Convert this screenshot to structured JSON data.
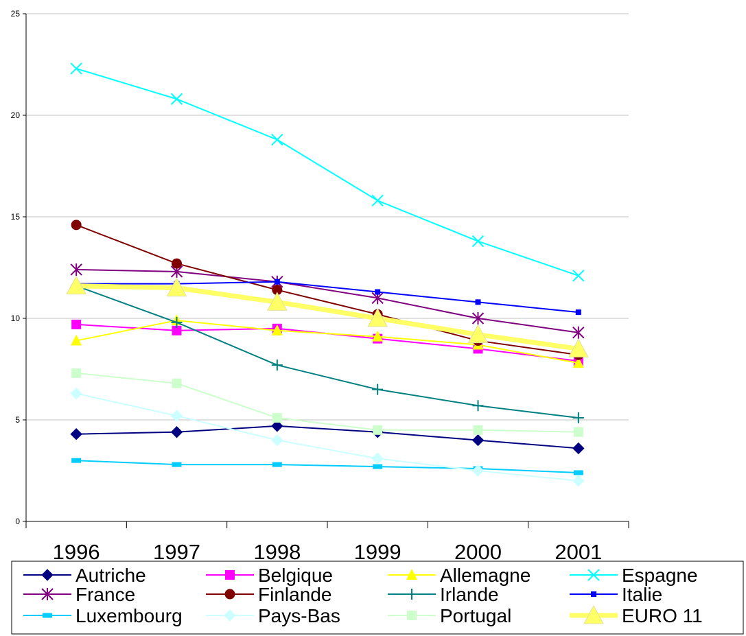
{
  "chart_data": {
    "type": "line",
    "title": "",
    "xlabel": "",
    "ylabel": "",
    "categories": [
      "1996",
      "1997",
      "1998",
      "1999",
      "2000",
      "2001"
    ],
    "ylim": [
      0,
      25
    ],
    "yticks": [
      "0",
      "5",
      "10",
      "15",
      "20",
      "25"
    ],
    "grid": true,
    "legend_position": "bottom",
    "series": [
      {
        "name": "Autriche",
        "color": "#000080",
        "marker": "diamond",
        "values": [
          4.3,
          4.4,
          4.7,
          4.4,
          4.0,
          3.6
        ]
      },
      {
        "name": "Belgique",
        "color": "#ff00ff",
        "marker": "square",
        "values": [
          9.7,
          9.4,
          9.5,
          9.0,
          8.5,
          7.9
        ]
      },
      {
        "name": "Allemagne",
        "color": "#ffff00",
        "marker": "triangle",
        "values": [
          8.9,
          9.9,
          9.4,
          9.1,
          8.7,
          7.8
        ]
      },
      {
        "name": "Espagne",
        "color": "#00ffff",
        "marker": "x",
        "values": [
          22.3,
          20.8,
          18.8,
          15.8,
          13.8,
          12.1
        ]
      },
      {
        "name": "France",
        "color": "#800080",
        "marker": "star",
        "values": [
          12.4,
          12.3,
          11.8,
          11.0,
          10.0,
          9.3
        ]
      },
      {
        "name": "Finlande",
        "color": "#800000",
        "marker": "circle",
        "values": [
          14.6,
          12.7,
          11.4,
          10.2,
          8.9,
          8.2
        ]
      },
      {
        "name": "Irlande",
        "color": "#008080",
        "marker": "plus",
        "values": [
          11.6,
          9.8,
          7.7,
          6.5,
          5.7,
          5.1
        ]
      },
      {
        "name": "Italie",
        "color": "#0000ff",
        "marker": "smallsquare",
        "values": [
          11.7,
          11.7,
          11.8,
          11.3,
          10.8,
          10.3
        ]
      },
      {
        "name": "Luxembourg",
        "color": "#00ccff",
        "marker": "dash",
        "values": [
          3.0,
          2.8,
          2.8,
          2.7,
          2.6,
          2.4
        ]
      },
      {
        "name": "Pays-Bas",
        "color": "#ccffff",
        "marker": "diamond",
        "values": [
          6.3,
          5.2,
          4.0,
          3.1,
          2.5,
          2.0
        ]
      },
      {
        "name": "Portugal",
        "color": "#ccffcc",
        "marker": "square",
        "values": [
          7.3,
          6.8,
          5.1,
          4.5,
          4.5,
          4.4
        ]
      },
      {
        "name": "EURO 11",
        "color": "#ffff66",
        "marker": "bigtriangle",
        "width": 7,
        "values": [
          11.6,
          11.5,
          10.8,
          10.0,
          9.2,
          8.5
        ]
      }
    ]
  }
}
